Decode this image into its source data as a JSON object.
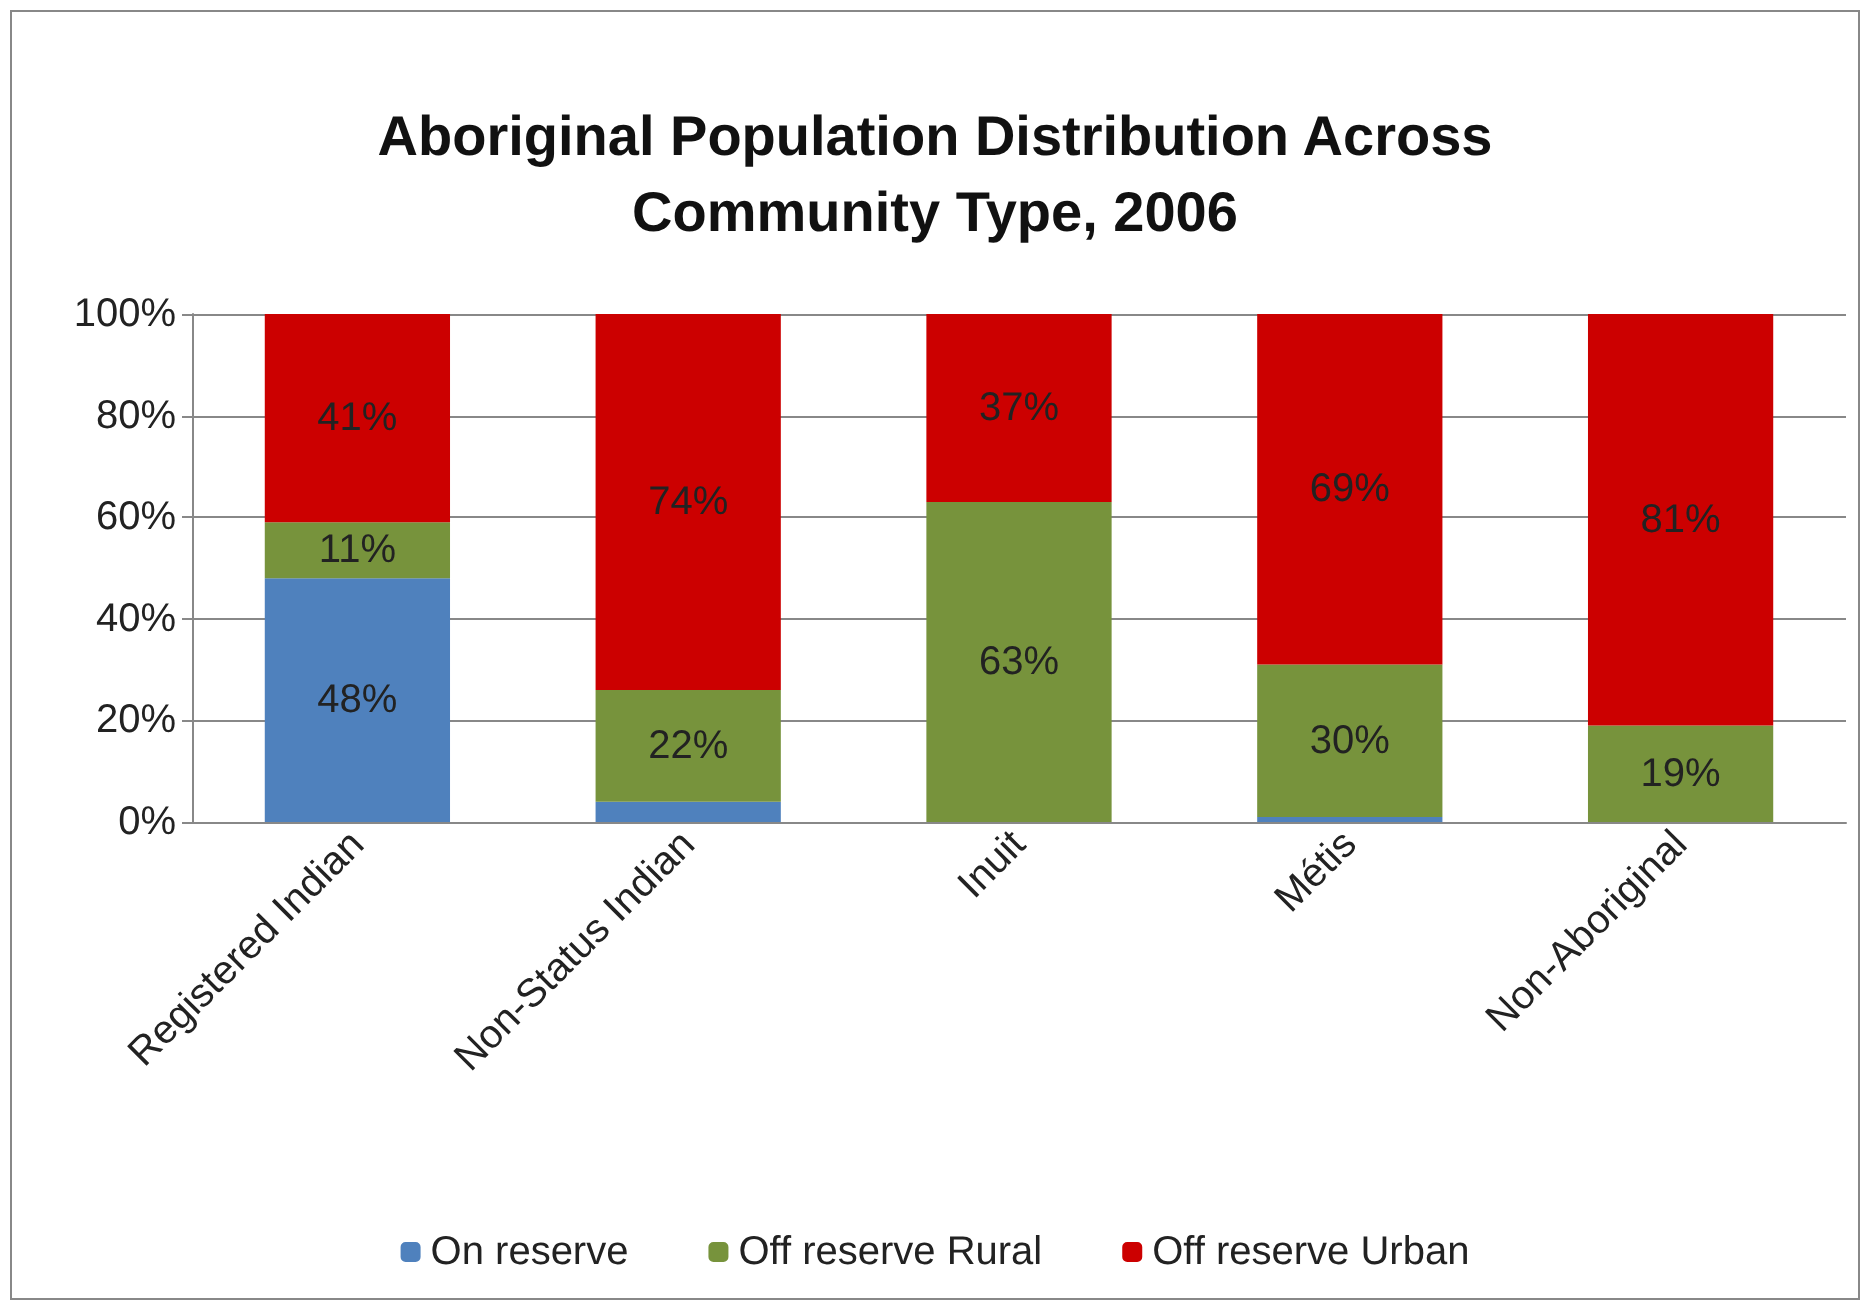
{
  "chart_data": {
    "type": "bar",
    "title": "Aboriginal Population Distribution Across\nCommunity Type, 2006",
    "categories": [
      "Registered Indian",
      "Non-Status Indian",
      "Inuit",
      "Métis",
      "Non-Aboriginal"
    ],
    "stacked": true,
    "series": [
      {
        "name": "On reserve",
        "color": "#4f81bd",
        "values": [
          48,
          4,
          0,
          1,
          0
        ],
        "value_labels": [
          "48%",
          null,
          null,
          null,
          null
        ]
      },
      {
        "name": "Off reserve Rural",
        "color": "#77933c",
        "values": [
          11,
          22,
          63,
          30,
          19
        ],
        "value_labels": [
          "11%",
          "22%",
          "63%",
          "30%",
          "19%"
        ]
      },
      {
        "name": "Off reserve Urban",
        "color": "#cc0000",
        "values": [
          41,
          74,
          37,
          69,
          81
        ],
        "value_labels": [
          "41%",
          "74%",
          "37%",
          "69%",
          "81%"
        ]
      }
    ],
    "ylim": [
      0,
      100
    ],
    "yticks": [
      {
        "value": 0,
        "label": "0%"
      },
      {
        "value": 20,
        "label": "20%"
      },
      {
        "value": 40,
        "label": "40%"
      },
      {
        "value": 60,
        "label": "60%"
      },
      {
        "value": 80,
        "label": "80%"
      },
      {
        "value": 100,
        "label": "100%"
      }
    ],
    "grid": "y",
    "legend": "bottom"
  }
}
